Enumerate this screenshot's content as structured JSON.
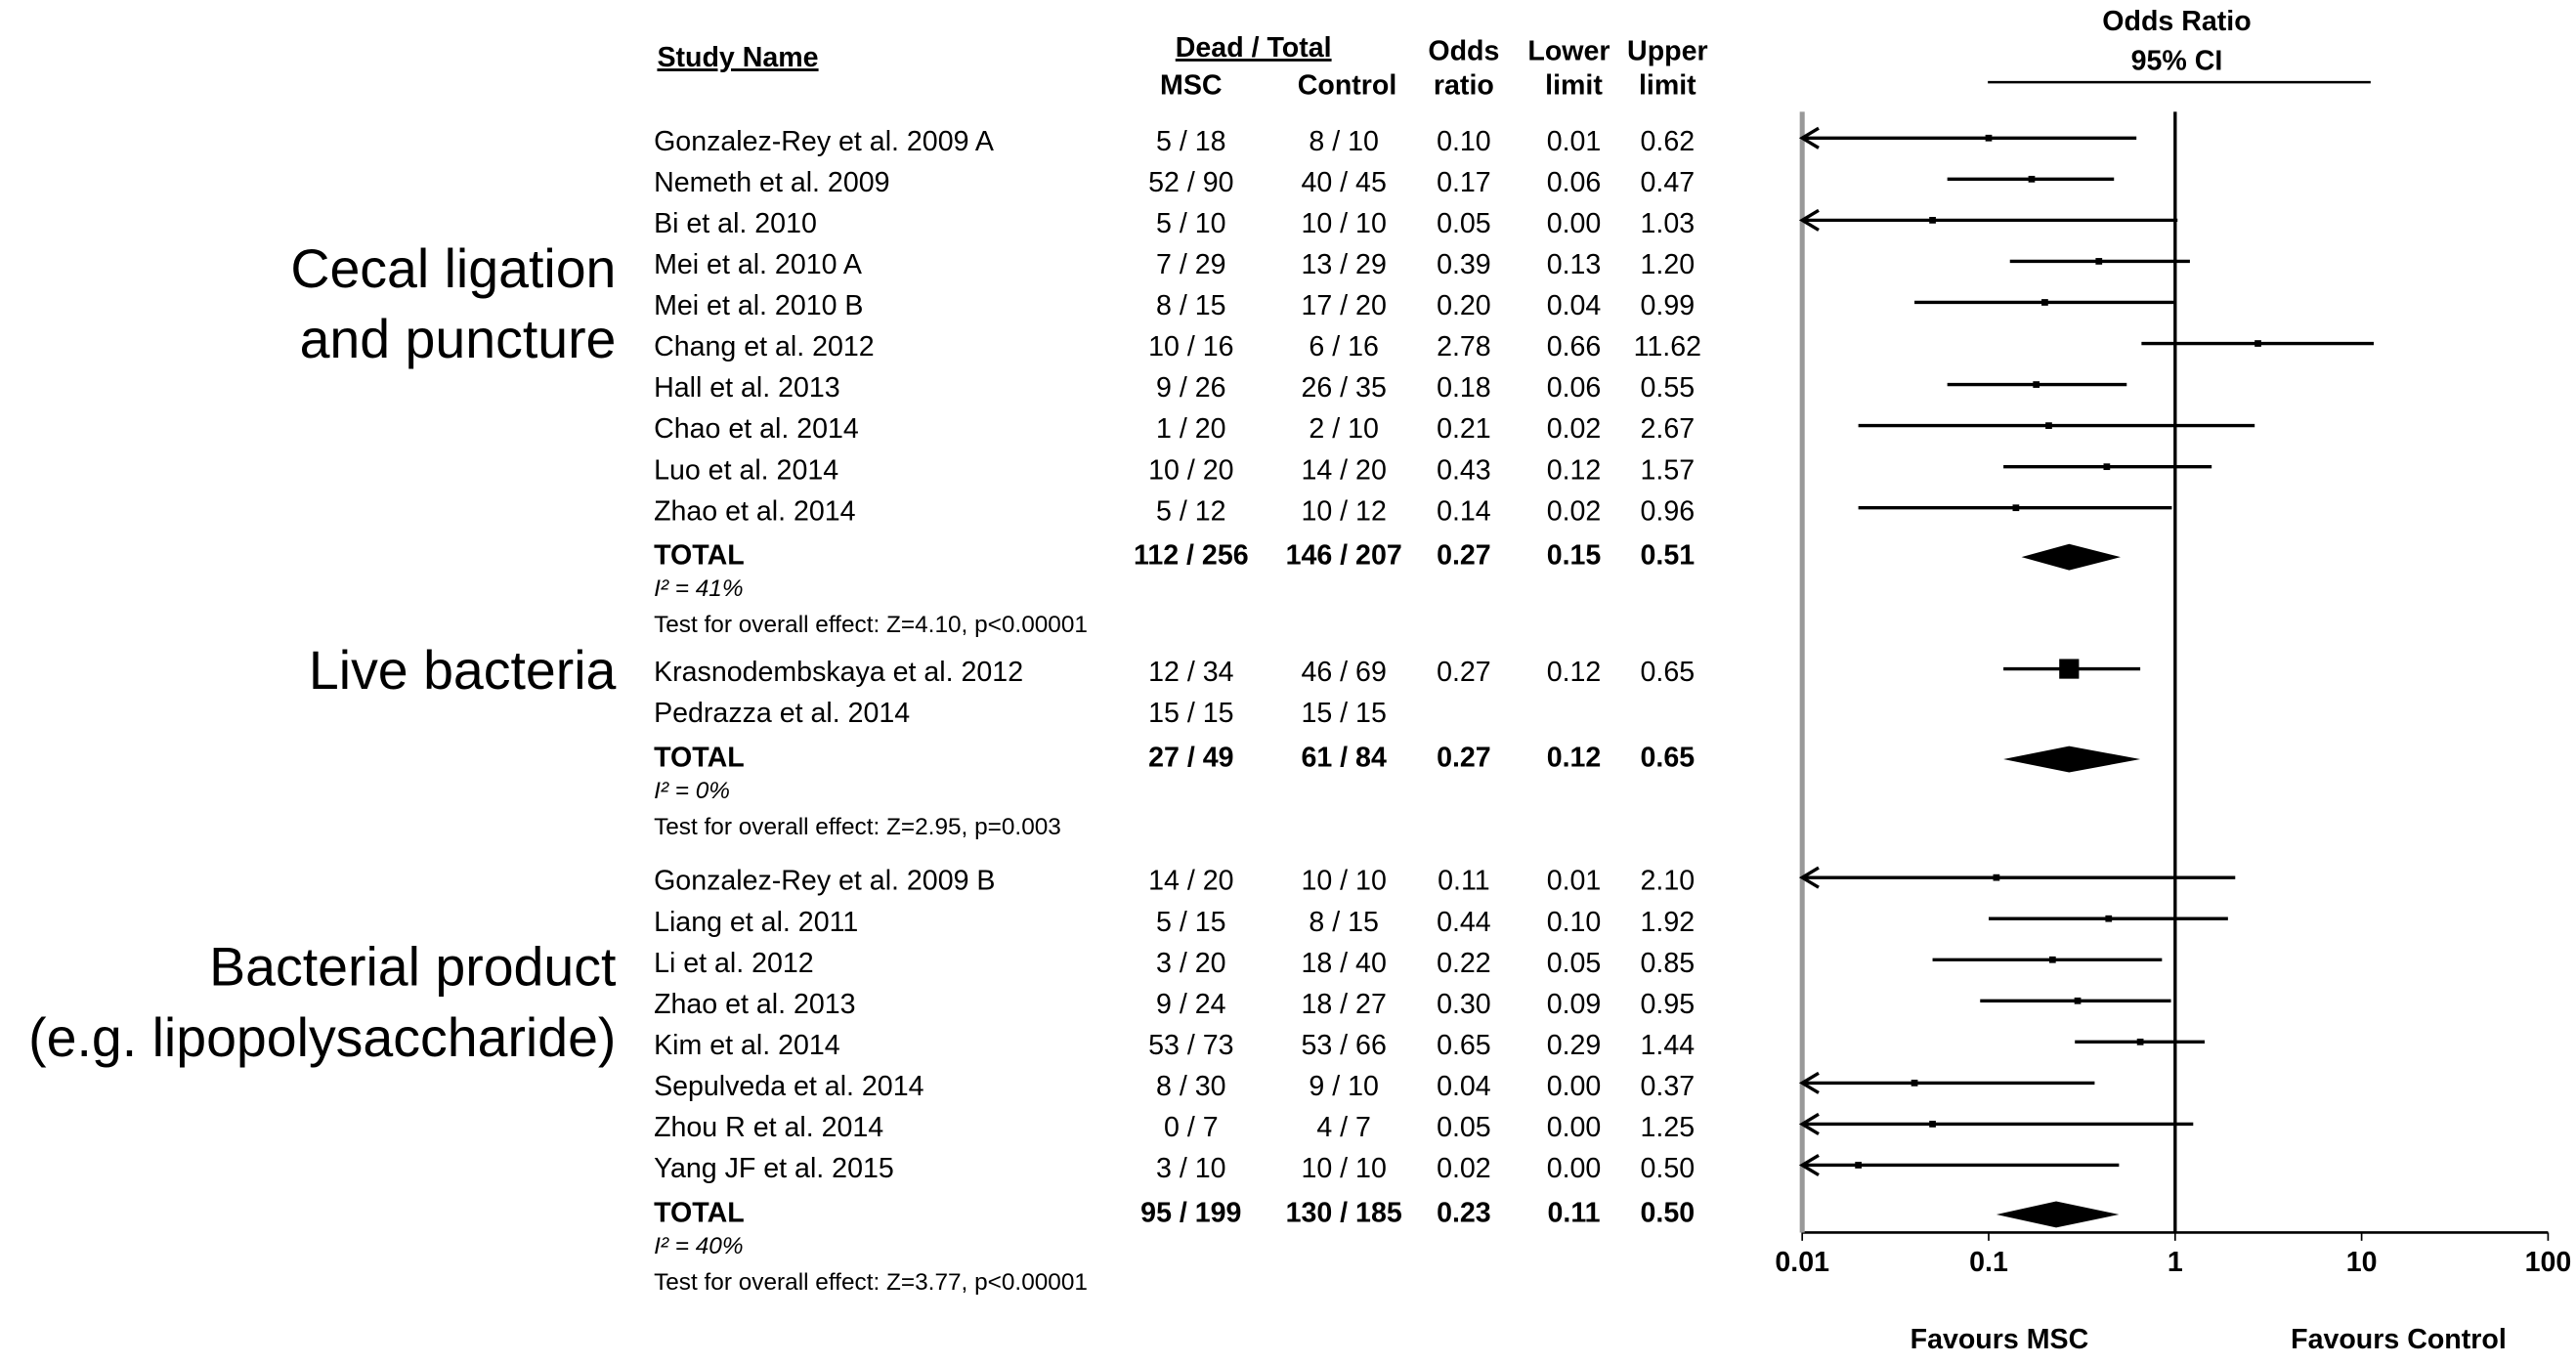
{
  "chart_data": {
    "type": "forest",
    "headers": {
      "study": "Study Name",
      "dead_total": "Dead / Total",
      "msc": "MSC",
      "control": "Control",
      "or": [
        "Odds",
        "ratio"
      ],
      "lower": [
        "Lower",
        "limit"
      ],
      "upper": [
        "Upper",
        "limit"
      ],
      "plot": [
        "Odds Ratio",
        "95% CI"
      ]
    },
    "x_scale": "log",
    "xlim": [
      0.01,
      100
    ],
    "xticks": [
      0.01,
      0.1,
      1,
      10,
      100
    ],
    "favours": [
      "Favours MSC",
      "Favours Control"
    ],
    "groups": [
      {
        "label": [
          "Cecal ligation",
          "and puncture"
        ],
        "studies": [
          {
            "name": "Gonzalez-Rey et al. 2009 A",
            "msc": "5 / 18",
            "control": "8 / 10",
            "values": [
              0.1,
              0.01,
              0.62
            ],
            "value_labels": [
              "0.10",
              "0.01",
              "0.62"
            ]
          },
          {
            "name": "Nemeth et al. 2009",
            "msc": "52 / 90",
            "control": "40 / 45",
            "values": [
              0.17,
              0.06,
              0.47
            ],
            "value_labels": [
              "0.17",
              "0.06",
              "0.47"
            ]
          },
          {
            "name": "Bi et al. 2010",
            "msc": "5 / 10",
            "control": "10 / 10",
            "values": [
              0.05,
              0,
              1.03
            ],
            "value_labels": [
              "0.05",
              "0.00",
              "1.03"
            ]
          },
          {
            "name": "Mei et al. 2010 A",
            "msc": "7 / 29",
            "control": "13 / 29",
            "values": [
              0.39,
              0.13,
              1.2
            ],
            "value_labels": [
              "0.39",
              "0.13",
              "1.20"
            ]
          },
          {
            "name": "Mei et al. 2010 B",
            "msc": "8 / 15",
            "control": "17 / 20",
            "values": [
              0.2,
              0.04,
              0.99
            ],
            "value_labels": [
              "0.20",
              "0.04",
              "0.99"
            ]
          },
          {
            "name": "Chang et al. 2012",
            "msc": "10 / 16",
            "control": "6 / 16",
            "values": [
              2.78,
              0.66,
              11.62
            ],
            "value_labels": [
              "2.78",
              "0.66",
              "11.62"
            ]
          },
          {
            "name": "Hall et al. 2013",
            "msc": "9 / 26",
            "control": "26 / 35",
            "values": [
              0.18,
              0.06,
              0.55
            ],
            "value_labels": [
              "0.18",
              "0.06",
              "0.55"
            ]
          },
          {
            "name": "Chao et al. 2014",
            "msc": "1 / 20",
            "control": "2 / 10",
            "values": [
              0.21,
              0.02,
              2.67
            ],
            "value_labels": [
              "0.21",
              "0.02",
              "2.67"
            ]
          },
          {
            "name": "Luo et al. 2014",
            "msc": "10 / 20",
            "control": "14 / 20",
            "values": [
              0.43,
              0.12,
              1.57
            ],
            "value_labels": [
              "0.43",
              "0.12",
              "1.57"
            ]
          },
          {
            "name": "Zhao et al. 2014",
            "msc": "5 / 12",
            "control": "10 / 12",
            "values": [
              0.14,
              0.02,
              0.96
            ],
            "value_labels": [
              "0.14",
              "0.02",
              "0.96"
            ]
          }
        ],
        "total": {
          "name": "TOTAL",
          "msc": "112 / 256",
          "control": "146 / 207",
          "values": [
            0.27,
            0.15,
            0.51
          ],
          "value_labels": [
            "0.27",
            "0.15",
            "0.51"
          ]
        },
        "heterogeneity": "I² = 41%",
        "test": "Test for overall effect: Z=4.10, p<0.00001"
      },
      {
        "label": [
          "Live bacteria"
        ],
        "studies": [
          {
            "name": "Krasnodembskaya et al. 2012",
            "msc": "12 / 34",
            "control": "46 / 69",
            "values": [
              0.27,
              0.12,
              0.65
            ],
            "value_labels": [
              "0.27",
              "0.12",
              "0.65"
            ]
          },
          {
            "name": "Pedrazza et al. 2014",
            "msc": "15 / 15",
            "control": "15 / 15",
            "values": [
              null,
              null,
              null
            ],
            "value_labels": [
              null,
              null,
              null
            ]
          }
        ],
        "total": {
          "name": "TOTAL",
          "msc": "27 / 49",
          "control": "61 / 84",
          "values": [
            0.27,
            0.12,
            0.65
          ],
          "value_labels": [
            "0.27",
            "0.12",
            "0.65"
          ]
        },
        "heterogeneity": "I² = 0%",
        "test": "Test for overall effect: Z=2.95, p=0.003"
      },
      {
        "label": [
          "Bacterial product",
          "(e.g. lipopolysaccharide)"
        ],
        "studies": [
          {
            "name": "Gonzalez-Rey et al. 2009 B",
            "msc": "14 / 20",
            "control": "10 / 10",
            "values": [
              0.11,
              0.01,
              2.1
            ],
            "value_labels": [
              "0.11",
              "0.01",
              "2.10"
            ]
          },
          {
            "name": "Liang et al. 2011",
            "msc": "5 / 15",
            "control": "8 / 15",
            "values": [
              0.44,
              0.1,
              1.92
            ],
            "value_labels": [
              "0.44",
              "0.10",
              "1.92"
            ]
          },
          {
            "name": "Li et al. 2012",
            "msc": "3 / 20",
            "control": "18 / 40",
            "values": [
              0.22,
              0.05,
              0.85
            ],
            "value_labels": [
              "0.22",
              "0.05",
              "0.85"
            ]
          },
          {
            "name": "Zhao et al. 2013",
            "msc": "9 / 24",
            "control": "18 / 27",
            "values": [
              0.3,
              0.09,
              0.95
            ],
            "value_labels": [
              "0.30",
              "0.09",
              "0.95"
            ]
          },
          {
            "name": "Kim et al. 2014",
            "msc": "53 / 73",
            "control": "53 / 66",
            "values": [
              0.65,
              0.29,
              1.44
            ],
            "value_labels": [
              "0.65",
              "0.29",
              "1.44"
            ]
          },
          {
            "name": "Sepulveda et al. 2014",
            "msc": "8 / 30",
            "control": "9 / 10",
            "values": [
              0.04,
              0,
              0.37
            ],
            "value_labels": [
              "0.04",
              "0.00",
              "0.37"
            ]
          },
          {
            "name": "Zhou R et al. 2014",
            "msc": "0 / 7",
            "control": "4 / 7",
            "values": [
              0.05,
              0,
              1.25
            ],
            "value_labels": [
              "0.05",
              "0.00",
              "1.25"
            ]
          },
          {
            "name": "Yang JF et al. 2015",
            "msc": "3 / 10",
            "control": "10 / 10",
            "values": [
              0.02,
              0,
              0.5
            ],
            "value_labels": [
              "0.02",
              "0.00",
              "0.50"
            ]
          }
        ],
        "total": {
          "name": "TOTAL",
          "msc": "95 / 199",
          "control": "130 / 185",
          "values": [
            0.23,
            0.11,
            0.5
          ],
          "value_labels": [
            "0.23",
            "0.11",
            "0.50"
          ]
        },
        "heterogeneity": "I² = 40%",
        "test": "Test for overall effect: Z=3.77, p<0.00001"
      }
    ]
  }
}
